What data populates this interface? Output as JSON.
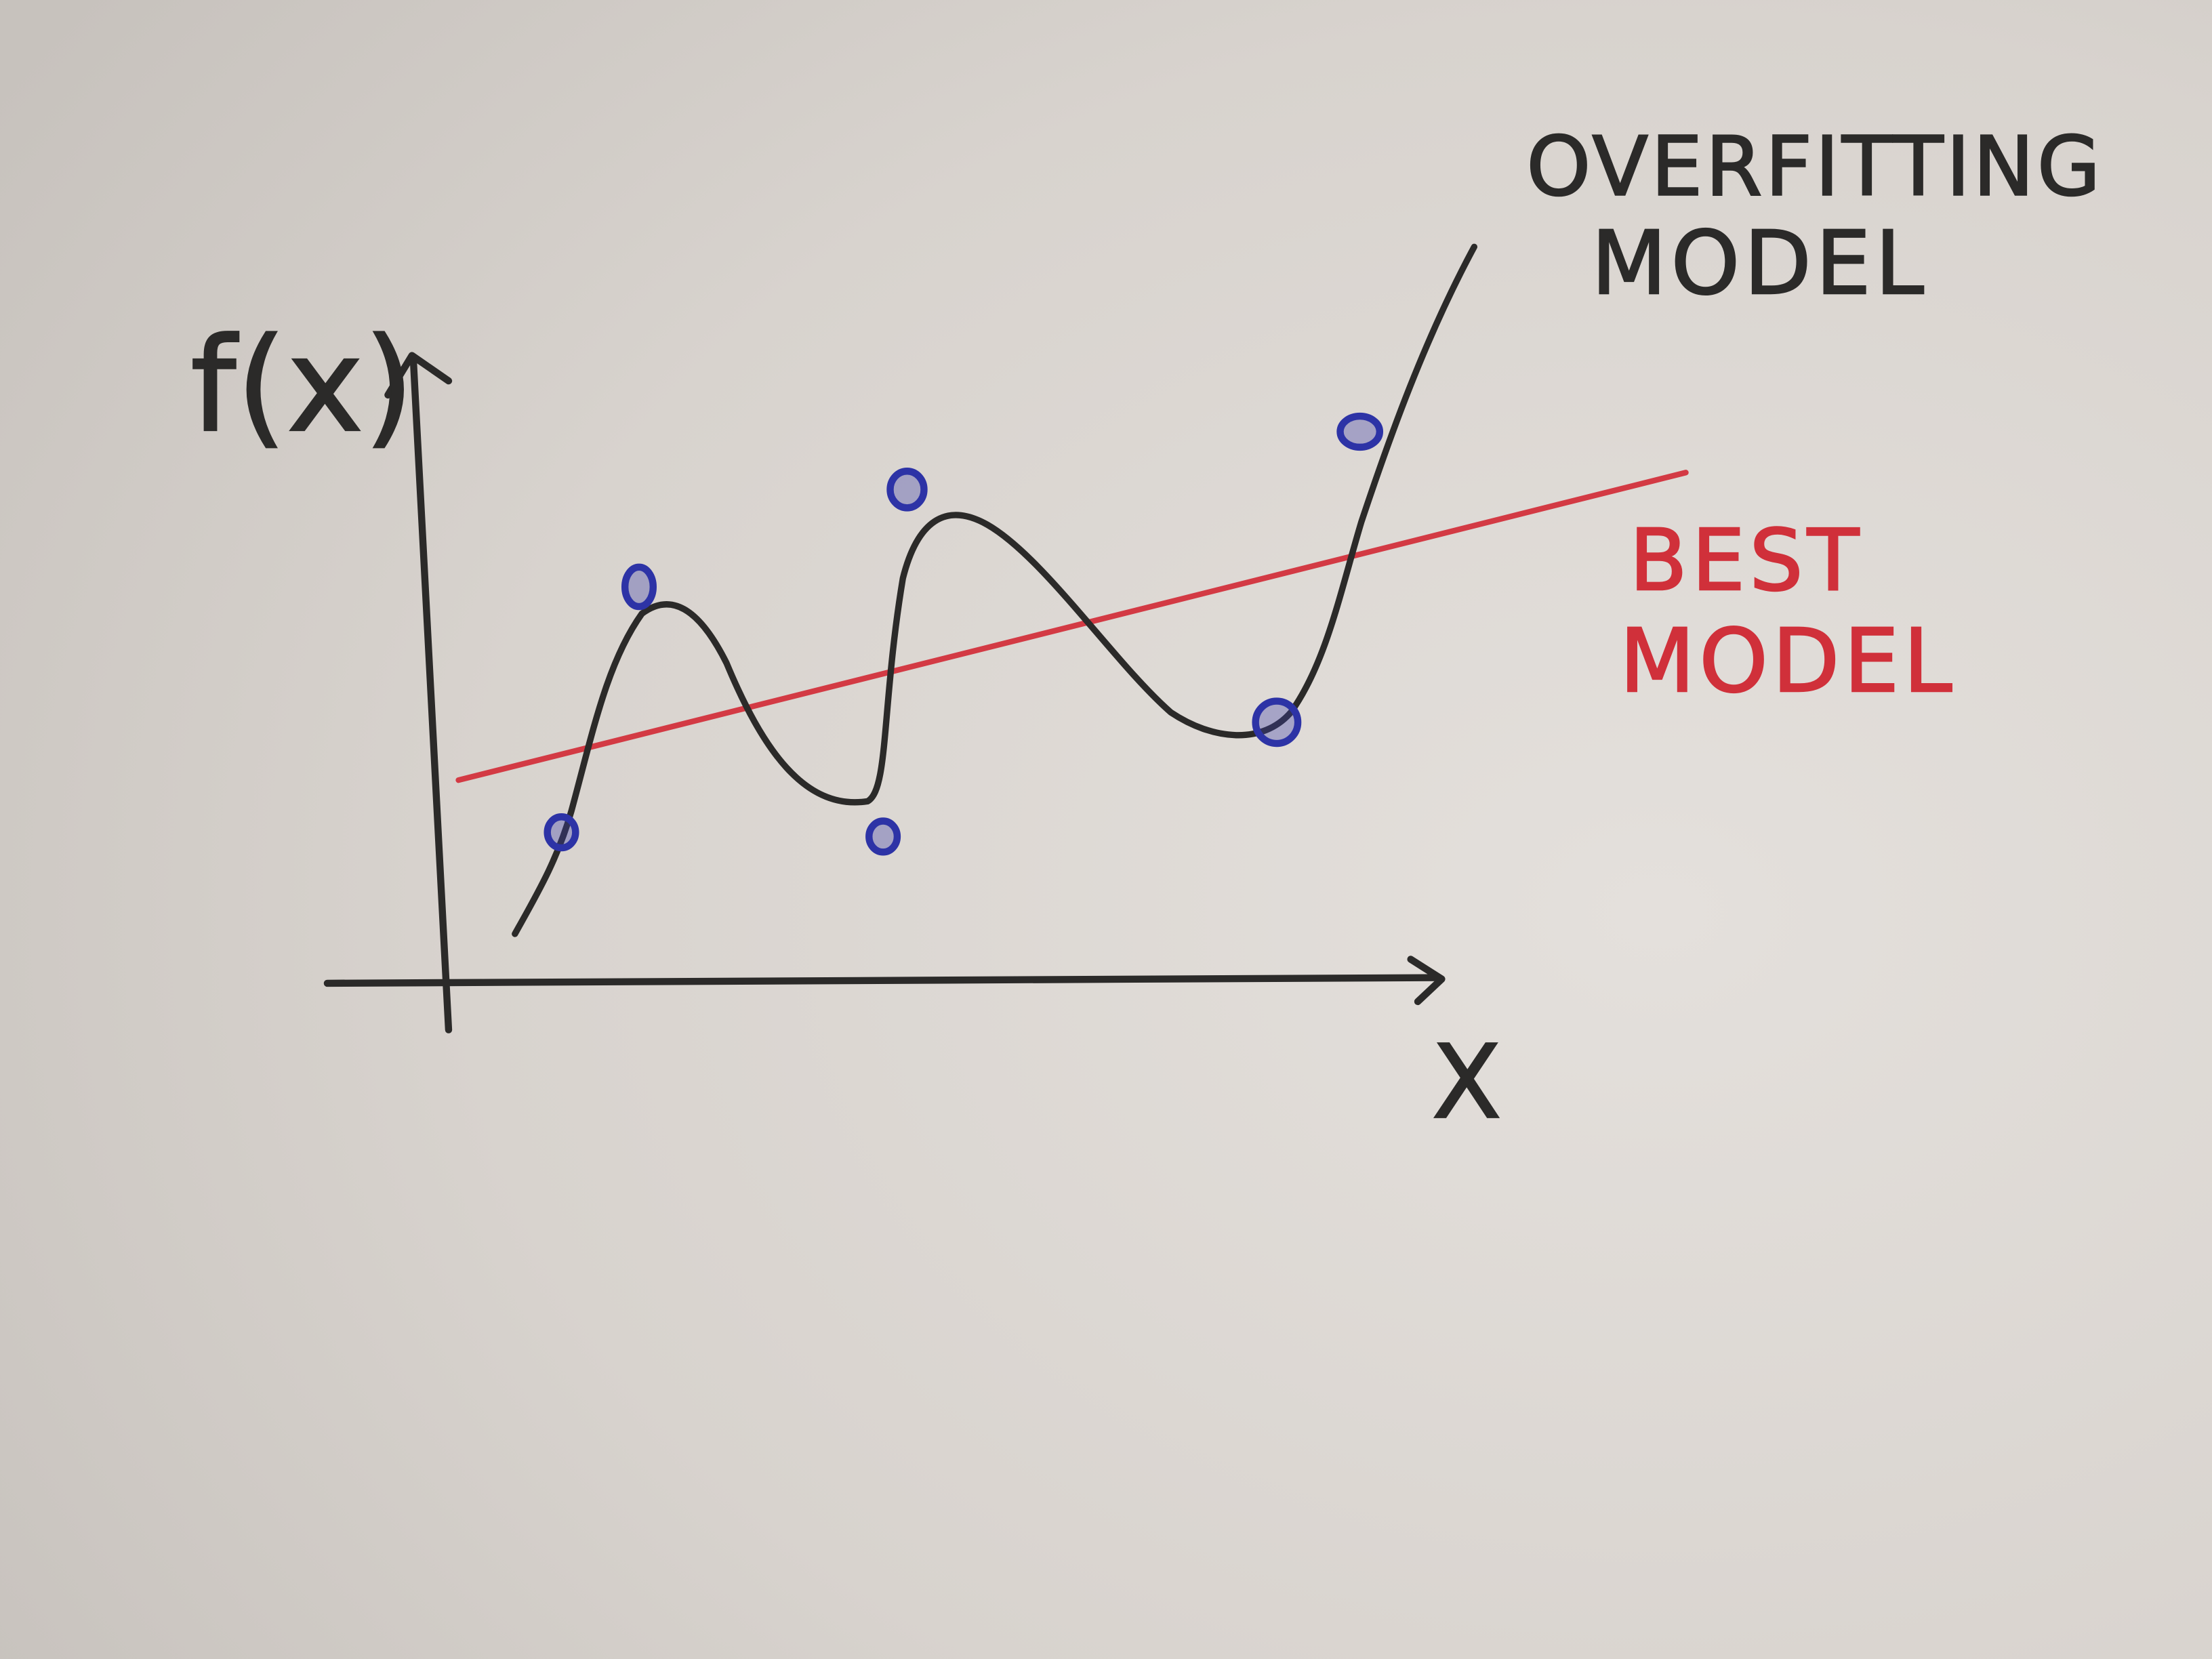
{
  "axes": {
    "y_label": "f(x)",
    "x_label": "X"
  },
  "annotations": [
    {
      "lines": [
        "OVERFITTING",
        "MODEL"
      ]
    },
    {
      "lines": [
        "BEST",
        "MODEL"
      ]
    }
  ]
}
